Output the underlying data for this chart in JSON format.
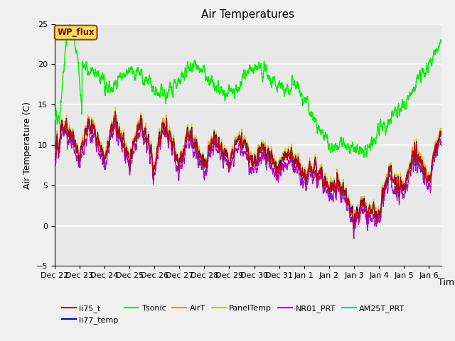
{
  "title": "Air Temperatures",
  "ylabel": "Air Temperature (C)",
  "xlabel": "Time",
  "ylim": [
    -5,
    25
  ],
  "xlim_days": [
    0,
    15.5
  ],
  "x_tick_labels": [
    "Dec 22",
    "Dec 23",
    "Dec 24",
    "Dec 25",
    "Dec 26",
    "Dec 27",
    "Dec 28",
    "Dec 29",
    "Dec 30",
    "Dec 31",
    "Jan 1",
    "Jan 2",
    "Jan 3",
    "Jan 4",
    "Jan 5",
    "Jan 6"
  ],
  "x_tick_positions": [
    0,
    1,
    2,
    3,
    4,
    5,
    6,
    7,
    8,
    9,
    10,
    11,
    12,
    13,
    14,
    15
  ],
  "series": {
    "li75_t": {
      "color": "#cc0000",
      "lw": 0.8
    },
    "li77_temp": {
      "color": "#0000cc",
      "lw": 0.8
    },
    "Tsonic": {
      "color": "#00ee00",
      "lw": 1.0
    },
    "AirT": {
      "color": "#ff8800",
      "lw": 0.8
    },
    "PanelTemp": {
      "color": "#cccc00",
      "lw": 0.8
    },
    "NR01_PRT": {
      "color": "#aa00cc",
      "lw": 0.8
    },
    "AM25T_PRT": {
      "color": "#00cccc",
      "lw": 0.8
    }
  },
  "annotation_text": "WP_flux",
  "background_color": "#e8e8e8",
  "fig_facecolor": "#f0f0f0",
  "grid_color": "white",
  "title_fontsize": 11,
  "label_fontsize": 9,
  "tick_fontsize": 8
}
